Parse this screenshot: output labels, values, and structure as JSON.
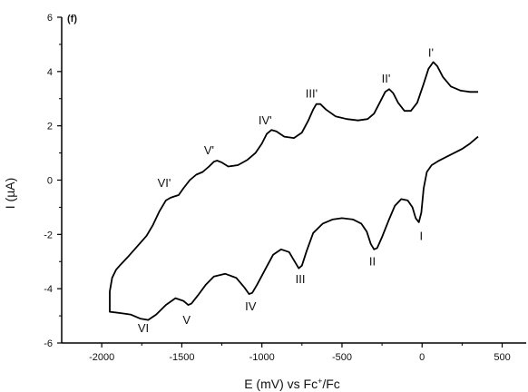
{
  "chart_data": {
    "type": "line",
    "panel_label": "(f)",
    "xlabel": "E (mV) vs Fc",
    "xlabel_superscript": "+",
    "xlabel_suffix": "/Fc",
    "ylabel": "I (µA)",
    "xlim": [
      -2250,
      650
    ],
    "ylim": [
      -6,
      6
    ],
    "x_ticks": [
      -2000,
      -1500,
      -1000,
      -500,
      0,
      500
    ],
    "x_tick_labels": [
      "-2000",
      "-1500",
      "-1000",
      "-500",
      "0",
      "500"
    ],
    "y_ticks": [
      -6,
      -4,
      -2,
      0,
      2,
      4,
      6
    ],
    "y_tick_labels": [
      "-6",
      "-4",
      "-2",
      "0",
      "2",
      "4",
      "6"
    ],
    "grid": false,
    "series": [
      {
        "color": "#000000",
        "points": [
          [
            350,
            1.6
          ],
          [
            300,
            1.35
          ],
          [
            250,
            1.15
          ],
          [
            200,
            1.0
          ],
          [
            150,
            0.85
          ],
          [
            100,
            0.7
          ],
          [
            60,
            0.55
          ],
          [
            30,
            0.3
          ],
          [
            10,
            -0.3
          ],
          [
            -5,
            -1.2
          ],
          [
            -20,
            -1.55
          ],
          [
            -40,
            -1.4
          ],
          [
            -60,
            -1.0
          ],
          [
            -90,
            -0.75
          ],
          [
            -130,
            -0.7
          ],
          [
            -170,
            -0.95
          ],
          [
            -210,
            -1.5
          ],
          [
            -250,
            -2.1
          ],
          [
            -280,
            -2.5
          ],
          [
            -300,
            -2.55
          ],
          [
            -320,
            -2.35
          ],
          [
            -345,
            -1.9
          ],
          [
            -380,
            -1.6
          ],
          [
            -430,
            -1.45
          ],
          [
            -500,
            -1.4
          ],
          [
            -560,
            -1.45
          ],
          [
            -620,
            -1.6
          ],
          [
            -680,
            -1.95
          ],
          [
            -720,
            -2.6
          ],
          [
            -750,
            -3.15
          ],
          [
            -770,
            -3.25
          ],
          [
            -795,
            -3.0
          ],
          [
            -830,
            -2.65
          ],
          [
            -880,
            -2.55
          ],
          [
            -930,
            -2.75
          ],
          [
            -980,
            -3.3
          ],
          [
            -1030,
            -3.85
          ],
          [
            -1060,
            -4.15
          ],
          [
            -1080,
            -4.2
          ],
          [
            -1110,
            -3.95
          ],
          [
            -1160,
            -3.6
          ],
          [
            -1230,
            -3.45
          ],
          [
            -1300,
            -3.55
          ],
          [
            -1350,
            -3.85
          ],
          [
            -1400,
            -4.25
          ],
          [
            -1440,
            -4.55
          ],
          [
            -1460,
            -4.6
          ],
          [
            -1490,
            -4.45
          ],
          [
            -1540,
            -4.35
          ],
          [
            -1600,
            -4.6
          ],
          [
            -1660,
            -4.95
          ],
          [
            -1710,
            -5.15
          ],
          [
            -1760,
            -5.1
          ],
          [
            -1820,
            -4.95
          ],
          [
            -1880,
            -4.9
          ],
          [
            -1950,
            -4.85
          ],
          [
            -1950,
            -4.1
          ],
          [
            -1935,
            -3.6
          ],
          [
            -1910,
            -3.3
          ],
          [
            -1880,
            -3.1
          ],
          [
            -1840,
            -2.85
          ],
          [
            -1780,
            -2.45
          ],
          [
            -1720,
            -2.05
          ],
          [
            -1680,
            -1.65
          ],
          [
            -1640,
            -1.15
          ],
          [
            -1600,
            -0.75
          ],
          [
            -1570,
            -0.65
          ],
          [
            -1545,
            -0.6
          ],
          [
            -1520,
            -0.55
          ],
          [
            -1490,
            -0.3
          ],
          [
            -1450,
            0.0
          ],
          [
            -1410,
            0.2
          ],
          [
            -1370,
            0.3
          ],
          [
            -1330,
            0.5
          ],
          [
            -1300,
            0.68
          ],
          [
            -1280,
            0.72
          ],
          [
            -1250,
            0.65
          ],
          [
            -1210,
            0.5
          ],
          [
            -1150,
            0.55
          ],
          [
            -1090,
            0.75
          ],
          [
            -1040,
            1.0
          ],
          [
            -1000,
            1.35
          ],
          [
            -970,
            1.7
          ],
          [
            -940,
            1.85
          ],
          [
            -910,
            1.8
          ],
          [
            -860,
            1.6
          ],
          [
            -800,
            1.55
          ],
          [
            -750,
            1.75
          ],
          [
            -710,
            2.2
          ],
          [
            -680,
            2.6
          ],
          [
            -660,
            2.8
          ],
          [
            -635,
            2.8
          ],
          [
            -600,
            2.6
          ],
          [
            -540,
            2.35
          ],
          [
            -470,
            2.25
          ],
          [
            -400,
            2.2
          ],
          [
            -340,
            2.25
          ],
          [
            -300,
            2.45
          ],
          [
            -260,
            2.9
          ],
          [
            -230,
            3.25
          ],
          [
            -205,
            3.35
          ],
          [
            -180,
            3.2
          ],
          [
            -150,
            2.85
          ],
          [
            -110,
            2.55
          ],
          [
            -70,
            2.55
          ],
          [
            -30,
            2.85
          ],
          [
            10,
            3.55
          ],
          [
            40,
            4.1
          ],
          [
            70,
            4.35
          ],
          [
            95,
            4.2
          ],
          [
            130,
            3.8
          ],
          [
            180,
            3.45
          ],
          [
            240,
            3.3
          ],
          [
            300,
            3.25
          ],
          [
            350,
            3.25
          ]
        ]
      }
    ],
    "annotations": [
      {
        "text": "I'",
        "x": 55,
        "y": 4.55
      },
      {
        "text": "II'",
        "x": -225,
        "y": 3.6
      },
      {
        "text": "III'",
        "x": -690,
        "y": 3.05
      },
      {
        "text": "IV'",
        "x": -980,
        "y": 2.05
      },
      {
        "text": "V'",
        "x": -1330,
        "y": 0.95
      },
      {
        "text": "VI'",
        "x": -1610,
        "y": -0.25
      },
      {
        "text": "I",
        "x": -5,
        "y": -2.2
      },
      {
        "text": "II",
        "x": -310,
        "y": -3.15
      },
      {
        "text": "III",
        "x": -760,
        "y": -3.8
      },
      {
        "text": "IV",
        "x": -1070,
        "y": -4.8
      },
      {
        "text": "V",
        "x": -1470,
        "y": -5.3
      },
      {
        "text": "VI",
        "x": -1740,
        "y": -5.6
      }
    ]
  }
}
